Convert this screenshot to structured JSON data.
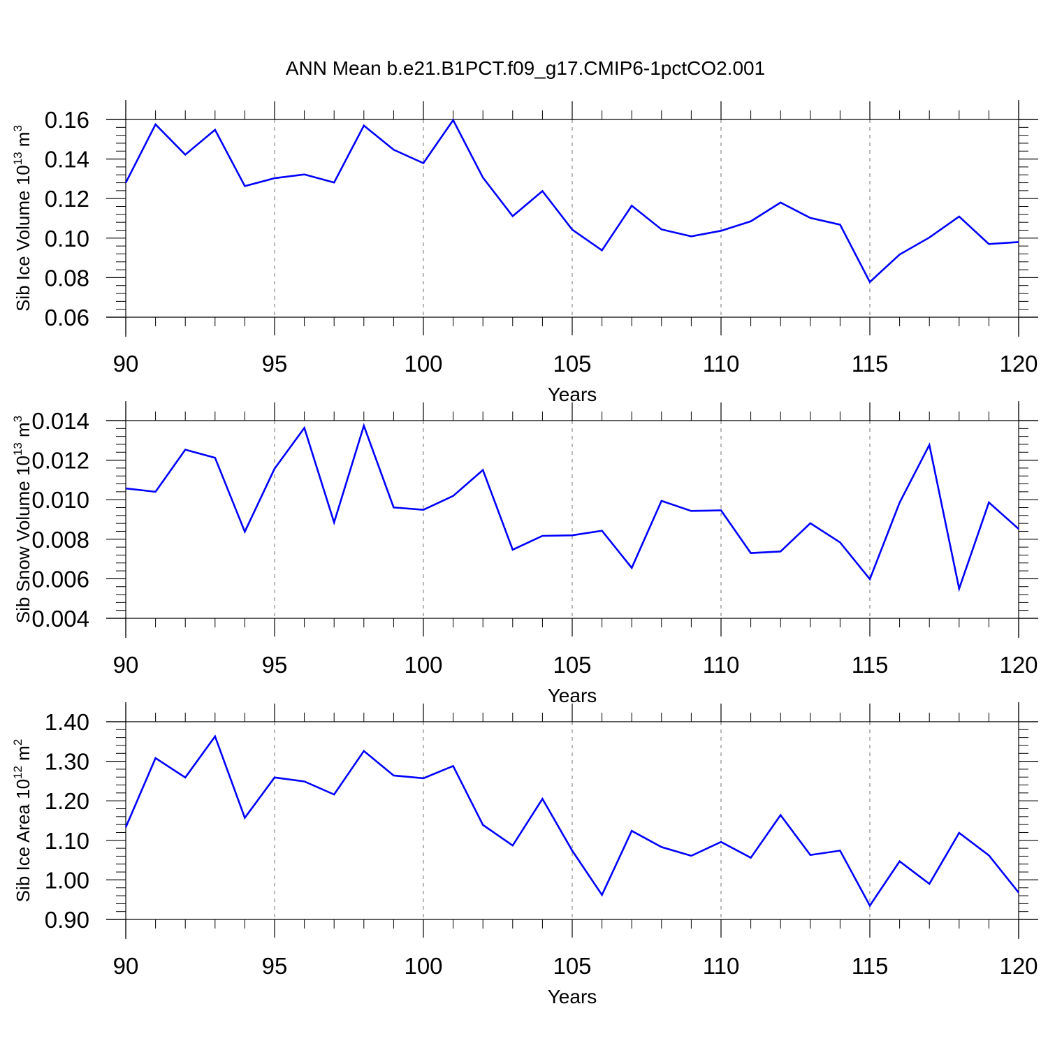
{
  "title": "ANN Mean b.e21.B1PCT.f09_g17.CMIP6-1pctCO2.001",
  "colors": {
    "line": "#0000ff",
    "axis": "#000000",
    "grid": "#888888"
  },
  "chart_data": [
    {
      "type": "line",
      "xlabel": "Years",
      "ylabel": {
        "text": "Sib Ice Volume 10",
        "exponent": "13",
        "unit": "m",
        "unit_exponent": "3"
      },
      "xlim": [
        90,
        120
      ],
      "ylim": [
        0.06,
        0.16
      ],
      "x_ticks": [
        "90",
        "95",
        "100",
        "105",
        "110",
        "115",
        "120"
      ],
      "y_ticks": [
        "0.06",
        "0.08",
        "0.10",
        "0.12",
        "0.14",
        "0.16"
      ],
      "grid": "x-dashed",
      "x": [
        90,
        91,
        92,
        93,
        94,
        95,
        96,
        97,
        98,
        99,
        100,
        101,
        102,
        103,
        104,
        105,
        106,
        107,
        108,
        109,
        110,
        111,
        112,
        113,
        114,
        115,
        116,
        117,
        118,
        119,
        120
      ],
      "series": [
        {
          "values": [
            0.128,
            0.1575,
            0.1422,
            0.1548,
            0.1263,
            0.1303,
            0.1322,
            0.1281,
            0.1569,
            0.1447,
            0.1379,
            0.1597,
            0.1306,
            0.1111,
            0.1238,
            0.1043,
            0.0938,
            0.1164,
            0.1044,
            0.1009,
            0.1037,
            0.1085,
            0.118,
            0.1102,
            0.1068,
            0.0778,
            0.0917,
            0.1003,
            0.1109,
            0.097,
            0.098
          ]
        }
      ]
    },
    {
      "type": "line",
      "xlabel": "Years",
      "ylabel": {
        "text": "Sib Snow Volume 10",
        "exponent": "13",
        "unit": "m",
        "unit_exponent": "3"
      },
      "xlim": [
        90,
        120
      ],
      "ylim": [
        0.004,
        0.014
      ],
      "x_ticks": [
        "90",
        "95",
        "100",
        "105",
        "110",
        "115",
        "120"
      ],
      "y_ticks": [
        "0.004",
        "0.006",
        "0.008",
        "0.010",
        "0.012",
        "0.014"
      ],
      "grid": "x-dashed",
      "x": [
        90,
        91,
        92,
        93,
        94,
        95,
        96,
        97,
        98,
        99,
        100,
        101,
        102,
        103,
        104,
        105,
        106,
        107,
        108,
        109,
        110,
        111,
        112,
        113,
        114,
        115,
        116,
        117,
        118,
        119,
        120
      ],
      "series": [
        {
          "values": [
            0.01057,
            0.0104,
            0.01253,
            0.01212,
            0.00838,
            0.01157,
            0.01363,
            0.00885,
            0.01374,
            0.00961,
            0.00949,
            0.01019,
            0.0115,
            0.00747,
            0.00817,
            0.0082,
            0.00843,
            0.00655,
            0.00994,
            0.00943,
            0.00946,
            0.0073,
            0.00738,
            0.00881,
            0.00784,
            0.00598,
            0.00985,
            0.01277,
            0.0055,
            0.00986,
            0.00852
          ]
        }
      ]
    },
    {
      "type": "line",
      "xlabel": "Years",
      "ylabel": {
        "text": "Sib Ice Area 10",
        "exponent": "12",
        "unit": "m",
        "unit_exponent": "2"
      },
      "xlim": [
        90,
        120
      ],
      "ylim": [
        0.9,
        1.4
      ],
      "x_ticks": [
        "90",
        "95",
        "100",
        "105",
        "110",
        "115",
        "120"
      ],
      "y_ticks": [
        "0.90",
        "1.00",
        "1.10",
        "1.20",
        "1.30",
        "1.40"
      ],
      "grid": "x-dashed",
      "x": [
        90,
        91,
        92,
        93,
        94,
        95,
        96,
        97,
        98,
        99,
        100,
        101,
        102,
        103,
        104,
        105,
        106,
        107,
        108,
        109,
        110,
        111,
        112,
        113,
        114,
        115,
        116,
        117,
        118,
        119,
        120
      ],
      "series": [
        {
          "values": [
            1.133,
            1.308,
            1.259,
            1.363,
            1.157,
            1.259,
            1.249,
            1.216,
            1.326,
            1.264,
            1.257,
            1.288,
            1.139,
            1.087,
            1.205,
            1.074,
            0.962,
            1.124,
            1.083,
            1.061,
            1.096,
            1.056,
            1.164,
            1.063,
            1.074,
            0.935,
            1.047,
            0.99,
            1.119,
            1.062,
            0.968
          ]
        }
      ]
    }
  ]
}
